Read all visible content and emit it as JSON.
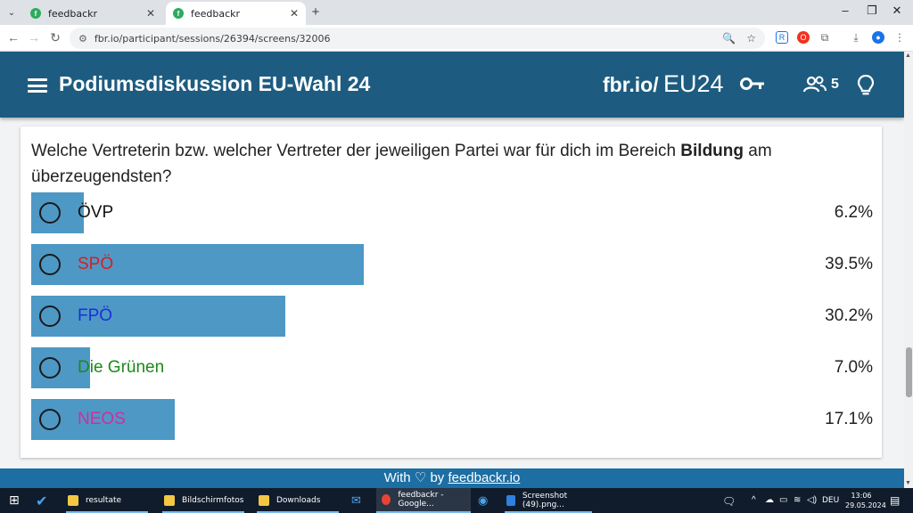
{
  "browser": {
    "tabs": [
      {
        "title": "feedbackr",
        "close": "✕",
        "active": false
      },
      {
        "title": "feedbackr",
        "close": "✕",
        "active": true
      }
    ],
    "new_tab": "+",
    "window_controls": {
      "minimize": "–",
      "maximize": "❐",
      "close": "✕"
    },
    "url": "fbr.io/participant/sessions/26394/screens/32006"
  },
  "app": {
    "title": "Podiumsdiskussion EU-Wahl 24",
    "session_prefix": "fbr.io/",
    "session_code": "EU24",
    "participants_count": "5"
  },
  "question": {
    "text_before": "Welche Vertreterin bzw. welcher Vertreter der jeweiligen Partei war für dich im Bereich ",
    "text_bold": "Bildung",
    "text_after": " am überzeugendsten?"
  },
  "options": [
    {
      "label": "ÖVP",
      "percent_label": "6.2%",
      "percent": 6.2,
      "color": "#111111"
    },
    {
      "label": "SPÖ",
      "percent_label": "39.5%",
      "percent": 39.5,
      "color": "#d91e1e"
    },
    {
      "label": "FPÖ",
      "percent_label": "30.2%",
      "percent": 30.2,
      "color": "#1b2fd6"
    },
    {
      "label": "Die Grünen",
      "percent_label": "7.0%",
      "percent": 7.0,
      "color": "#1a8a1a"
    },
    {
      "label": "NEOS",
      "percent_label": "17.1%",
      "percent": 17.1,
      "color": "#d12d9e"
    }
  ],
  "accent_colors": {
    "header": "#1d5c80",
    "bar": "#4e98c6",
    "footer": "#1d6ea3"
  },
  "footer": {
    "prefix": "With",
    "heart": "♡",
    "by": "by",
    "link": "feedbackr.io"
  },
  "taskbar": {
    "items": [
      {
        "label": "resultate",
        "icon": "folder-icon"
      },
      {
        "label": "Bildschirmfotos",
        "icon": "folder-icon"
      },
      {
        "label": "Downloads",
        "icon": "folder-icon"
      },
      {
        "label": "feedbackr - Google...",
        "icon": "chrome-icon"
      },
      {
        "label": "Screenshot (49).png...",
        "icon": "image-viewer-icon"
      }
    ],
    "language": "DEU",
    "time": "13:06",
    "date": "29.05.2024"
  }
}
